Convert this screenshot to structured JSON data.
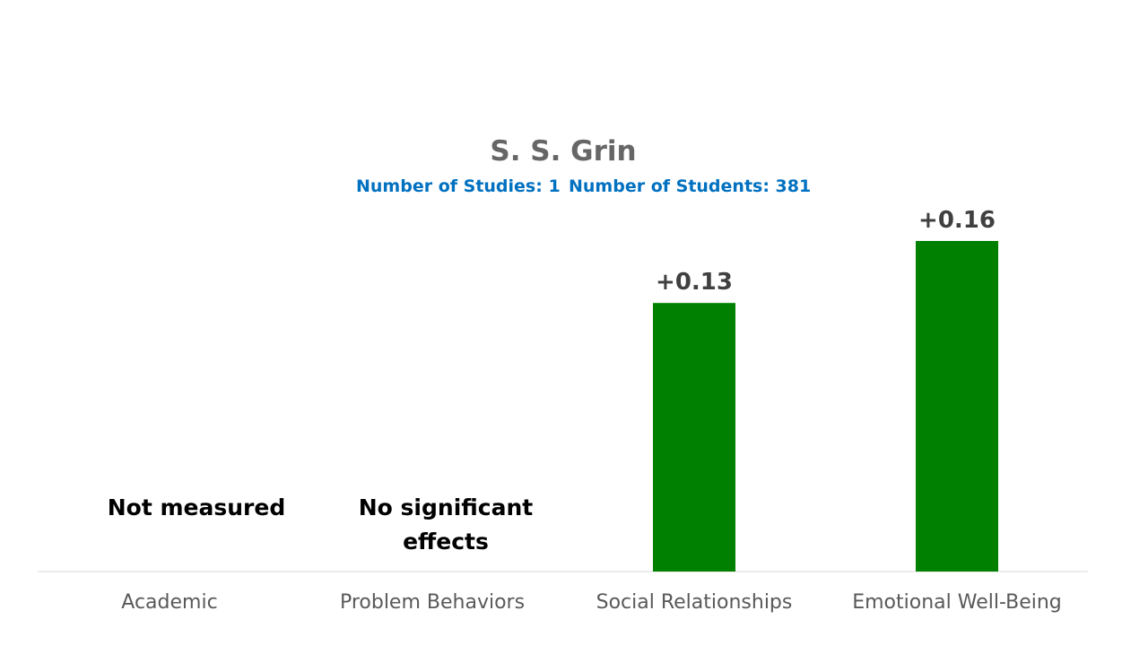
{
  "chart_data": {
    "type": "bar",
    "title": "S. S. Grin",
    "subtitle_studies": "Number of Studies: 1",
    "subtitle_students": "Number of Students: 381",
    "categories": [
      "Academic",
      "Problem Behaviors",
      "Social Relationships",
      "Emotional Well-Being"
    ],
    "values": [
      null,
      null,
      0.13,
      0.16
    ],
    "data_labels": [
      "",
      "",
      "+0.13",
      "+0.16"
    ],
    "notes": [
      "Not measured",
      "No significant effects",
      "",
      ""
    ],
    "bar_color": "#008000",
    "ylim": [
      0,
      0.16
    ],
    "grid": false,
    "legend": "none"
  }
}
